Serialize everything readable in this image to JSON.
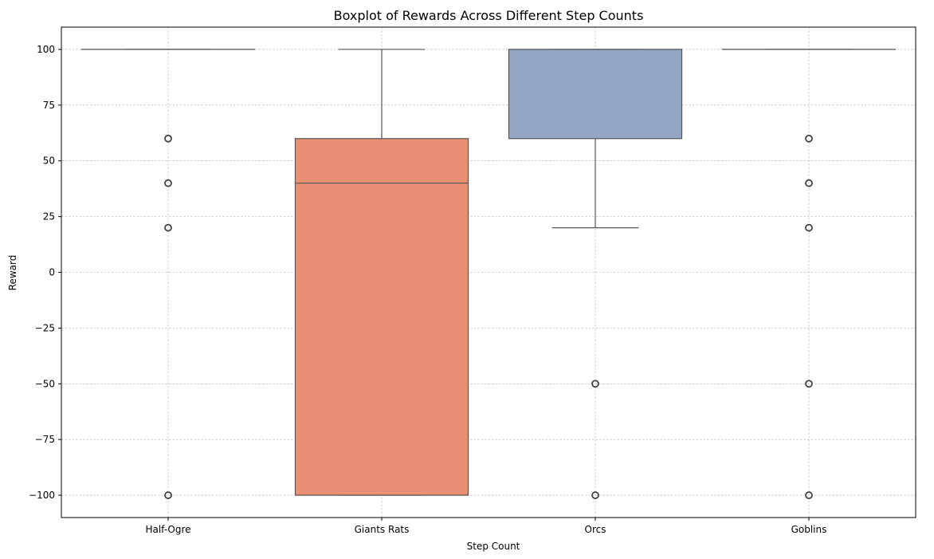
{
  "chart_data": {
    "type": "boxplot",
    "title": "Boxplot of Rewards Across Different Step Counts",
    "xlabel": "Step Count",
    "ylabel": "Reward",
    "ylim": [
      -110,
      110
    ],
    "yticks": [
      -100,
      -75,
      -50,
      -25,
      0,
      25,
      50,
      75,
      100
    ],
    "ytick_labels": [
      "−100",
      "−75",
      "−50",
      "−25",
      "0",
      "25",
      "50",
      "75",
      "100"
    ],
    "grid": true,
    "categories": [
      "Half-Ogre",
      "Giants Rats",
      "Orcs",
      "Goblins"
    ],
    "boxes": [
      {
        "category": "Half-Ogre",
        "q1": 100,
        "median": 100,
        "q3": 100,
        "whisker_low": 100,
        "whisker_high": 100,
        "outliers": [
          60,
          40,
          20,
          -100
        ],
        "color": "#66c2a5"
      },
      {
        "category": "Giants Rats",
        "q1": -100,
        "median": 40,
        "q3": 60,
        "whisker_low": -100,
        "whisker_high": 100,
        "outliers": [],
        "color": "#e98f73"
      },
      {
        "category": "Orcs",
        "q1": 60,
        "median": 100,
        "q3": 100,
        "whisker_low": 20,
        "whisker_high": 100,
        "outliers": [
          -50,
          -100
        ],
        "color": "#95a5c4"
      },
      {
        "category": "Goblins",
        "q1": 100,
        "median": 100,
        "q3": 100,
        "whisker_low": 100,
        "whisker_high": 100,
        "outliers": [
          60,
          40,
          20,
          -50,
          -100
        ],
        "color": "#e78ac3"
      }
    ]
  }
}
